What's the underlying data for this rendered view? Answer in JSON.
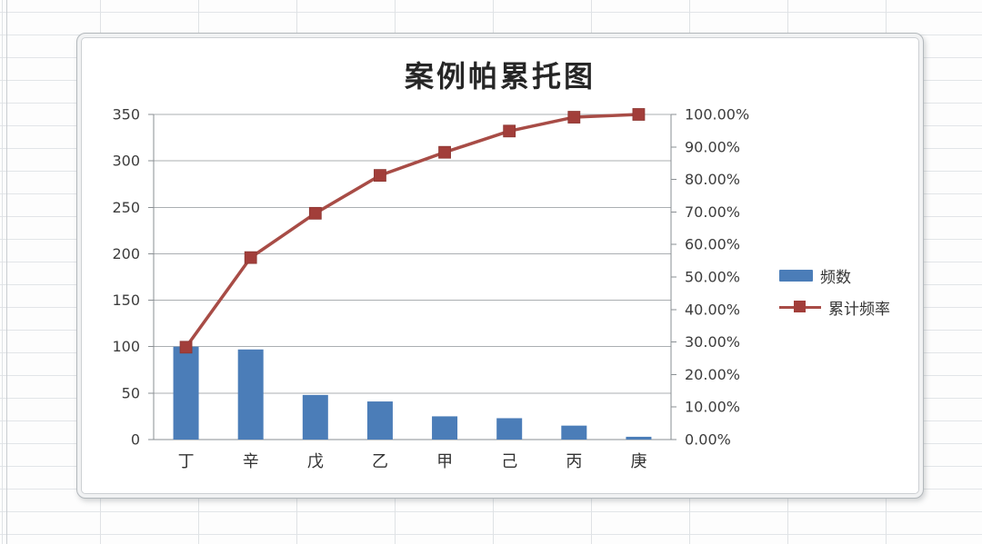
{
  "chart": {
    "title": "案例帕累托图",
    "legend": [
      {
        "label": "频数",
        "swatch": "bar",
        "color": "#4b7db8"
      },
      {
        "label": "累计频率",
        "swatch": "line-square",
        "color": "#a84c46",
        "marker_color": "#a23e3a"
      }
    ]
  },
  "chart_data": {
    "type": "bar+line (Pareto)",
    "title": "案例帕累托图",
    "categories": [
      "丁",
      "辛",
      "戊",
      "乙",
      "甲",
      "己",
      "丙",
      "庚"
    ],
    "series": [
      {
        "name": "频数",
        "chart": "bar",
        "axis": "left",
        "color": "#4b7db8",
        "values": [
          100,
          97,
          48,
          41,
          25,
          23,
          15,
          3
        ]
      },
      {
        "name": "累计频率",
        "chart": "line",
        "axis": "right",
        "color": "#a84c46",
        "marker": "square",
        "marker_color": "#a23e3a",
        "values_percent": [
          28.41,
          55.97,
          69.6,
          81.25,
          88.35,
          94.89,
          99.15,
          100.0
        ]
      }
    ],
    "left_axis": {
      "min": 0,
      "max": 350,
      "step": 50,
      "tick_labels": [
        "0",
        "50",
        "100",
        "150",
        "200",
        "250",
        "300",
        "350"
      ]
    },
    "right_axis": {
      "min": 0,
      "max": 100,
      "step": 10,
      "tick_labels": [
        "0.00%",
        "10.00%",
        "20.00%",
        "30.00%",
        "40.00%",
        "50.00%",
        "60.00%",
        "70.00%",
        "80.00%",
        "90.00%",
        "100.00%"
      ]
    },
    "gridlines": "horizontal",
    "legend_position": "right"
  },
  "colors": {
    "bar": "#4b7db8",
    "line": "#a84c46",
    "marker": "#a23e3a",
    "gridline": "#abafb2",
    "axis": "#8a8f93",
    "tick_text": "#3d3d3d"
  }
}
